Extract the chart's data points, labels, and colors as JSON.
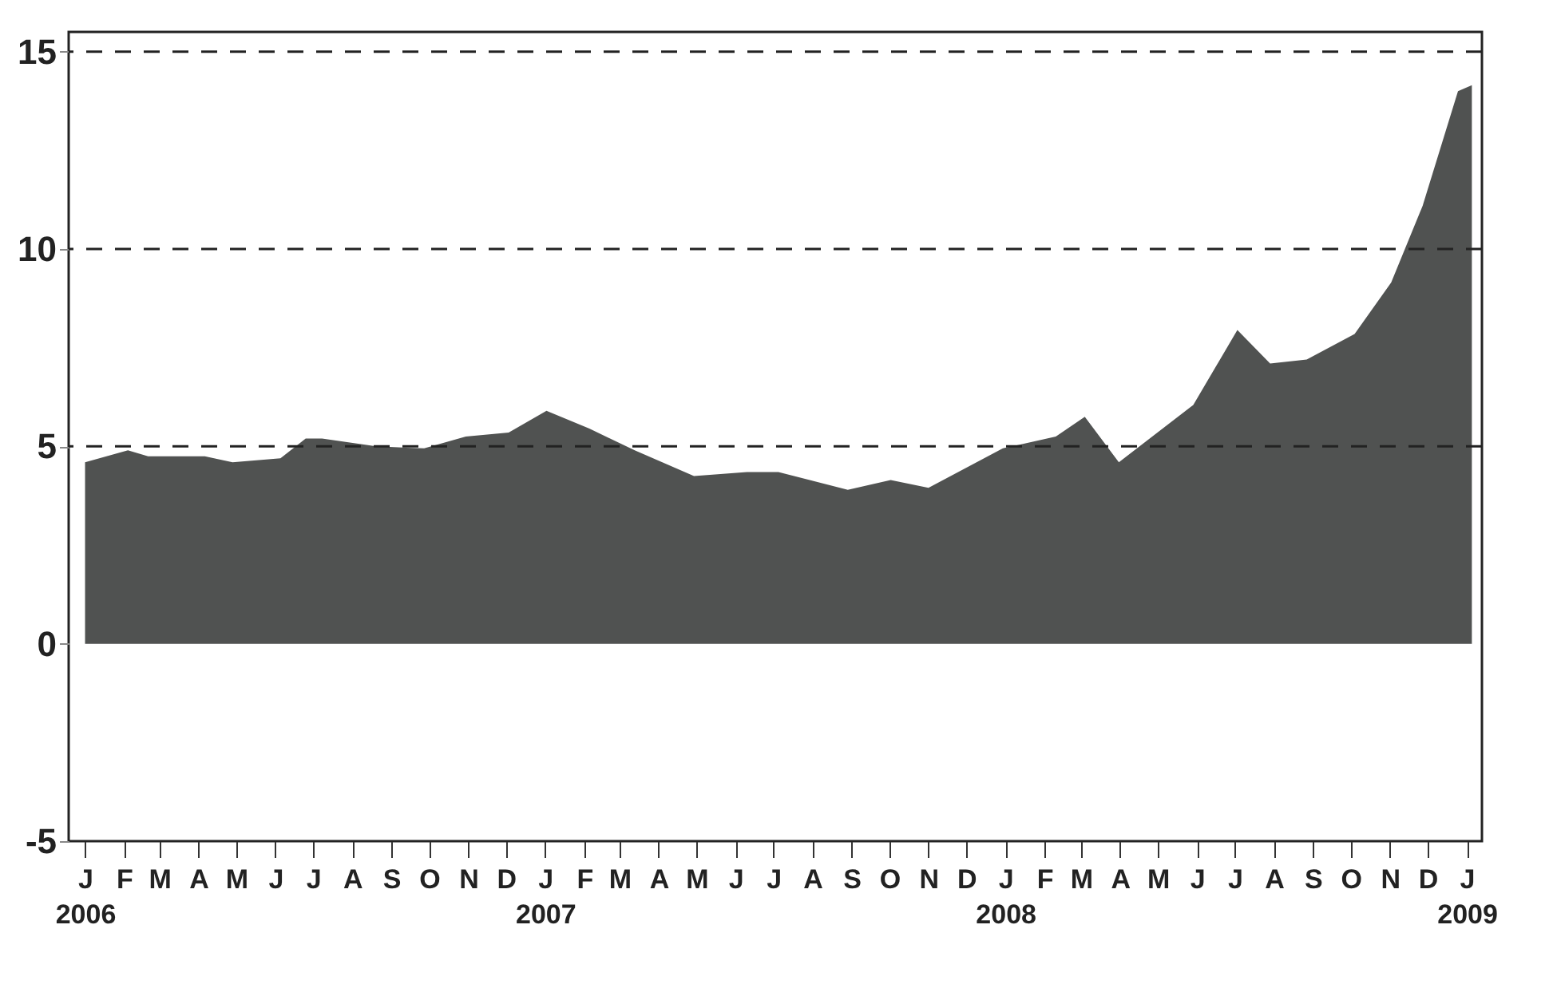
{
  "chart_data": {
    "type": "area",
    "x": [
      "2006-01-01",
      "2006-02-04",
      "2006-02-20",
      "2006-04-06",
      "2006-04-28",
      "2006-06-05",
      "2006-06-25",
      "2006-07-08",
      "2006-08-20",
      "2006-09-27",
      "2006-10-30",
      "2006-12-03",
      "2007-01-02",
      "2007-02-05",
      "2007-03-13",
      "2007-04-29",
      "2007-06-10",
      "2007-07-05",
      "2007-08-29",
      "2007-10-02",
      "2007-11-01",
      "2007-12-30",
      "2008-02-10",
      "2008-03-04",
      "2008-03-31",
      "2008-05-29",
      "2008-07-03",
      "2008-07-29",
      "2008-08-27",
      "2008-10-04",
      "2008-11-02",
      "2008-11-27",
      "2008-12-25",
      "2009-01-05"
    ],
    "series": [
      {
        "color": "#505251",
        "values": [
          4.6,
          4.9,
          4.75,
          4.75,
          4.6,
          4.7,
          5.2,
          5.2,
          5.0,
          4.95,
          5.25,
          5.35,
          5.9,
          5.45,
          4.9,
          4.25,
          4.35,
          4.35,
          3.9,
          4.15,
          3.95,
          4.95,
          5.25,
          5.75,
          4.6,
          6.05,
          7.95,
          7.1,
          7.2,
          7.85,
          9.15,
          11.1,
          14.0,
          14.15
        ]
      }
    ],
    "xlim": [
      "2005-12-19",
      "2009-01-13"
    ],
    "xticks": [
      {
        "value": "2006-01-01",
        "label": "J\n2006"
      },
      {
        "value": "2006-02-01",
        "label": "F"
      },
      {
        "value": "2006-03-01",
        "label": "M"
      },
      {
        "value": "2006-04-01",
        "label": "A"
      },
      {
        "value": "2006-05-01",
        "label": "M"
      },
      {
        "value": "2006-06-01",
        "label": "J"
      },
      {
        "value": "2006-07-01",
        "label": "J"
      },
      {
        "value": "2006-08-01",
        "label": "A"
      },
      {
        "value": "2006-09-01",
        "label": "S"
      },
      {
        "value": "2006-10-01",
        "label": "O"
      },
      {
        "value": "2006-11-01",
        "label": "N"
      },
      {
        "value": "2006-12-01",
        "label": "D"
      },
      {
        "value": "2007-01-01",
        "label": "J\n2007"
      },
      {
        "value": "2007-02-01",
        "label": "F"
      },
      {
        "value": "2007-03-01",
        "label": "M"
      },
      {
        "value": "2007-04-01",
        "label": "A"
      },
      {
        "value": "2007-05-01",
        "label": "M"
      },
      {
        "value": "2007-06-01",
        "label": "J"
      },
      {
        "value": "2007-07-01",
        "label": "J"
      },
      {
        "value": "2007-08-01",
        "label": "A"
      },
      {
        "value": "2007-09-01",
        "label": "S"
      },
      {
        "value": "2007-10-01",
        "label": "O"
      },
      {
        "value": "2007-11-01",
        "label": "N"
      },
      {
        "value": "2007-12-01",
        "label": "D"
      },
      {
        "value": "2008-01-01",
        "label": "J\n2008"
      },
      {
        "value": "2008-02-01",
        "label": "F"
      },
      {
        "value": "2008-03-01",
        "label": "M"
      },
      {
        "value": "2008-04-01",
        "label": "A"
      },
      {
        "value": "2008-05-01",
        "label": "M"
      },
      {
        "value": "2008-06-01",
        "label": "J"
      },
      {
        "value": "2008-07-01",
        "label": "J"
      },
      {
        "value": "2008-08-01",
        "label": "A"
      },
      {
        "value": "2008-09-01",
        "label": "S"
      },
      {
        "value": "2008-10-01",
        "label": "O"
      },
      {
        "value": "2008-11-01",
        "label": "N"
      },
      {
        "value": "2008-12-01",
        "label": "D"
      },
      {
        "value": "2009-01-01",
        "label": "J\n2009"
      }
    ],
    "ylim": [
      -5,
      15.5
    ],
    "yticks": [
      -5,
      0,
      5,
      10,
      15
    ],
    "ref_lines": [
      {
        "axis": "y",
        "value": 5,
        "line_style": "dashed",
        "color": "#222222"
      },
      {
        "axis": "y",
        "value": 10,
        "line_style": "dashed",
        "color": "#222222"
      },
      {
        "axis": "y",
        "value": 15,
        "line_style": "dashed",
        "color": "#222222"
      }
    ],
    "grid": false
  }
}
